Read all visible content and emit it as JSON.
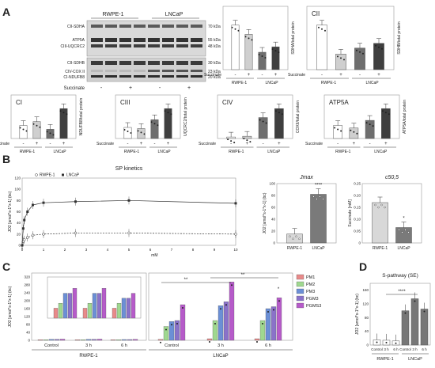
{
  "panel_letters": [
    "A",
    "B",
    "C",
    "D"
  ],
  "blot": {
    "groups": [
      "RWPE-1",
      "LNCaP"
    ],
    "bands_top": [
      {
        "name": "CII-SDHA",
        "kda": "70 kDa"
      },
      {
        "name": "ATP5A",
        "kda": "55 kDa"
      },
      {
        "name": "CIII-UQCRC2",
        "kda": "48 kDa"
      }
    ],
    "bands_bottom": [
      {
        "name": "CII-SDHB",
        "kda": "30 kDa"
      },
      {
        "name": "CIV-COX II",
        "kda": "23 kDa"
      },
      {
        "name": "CI-NDUFB8",
        "kda": "20 kDa"
      }
    ],
    "succinate_label": "Succinate",
    "succinate_marks": [
      "-",
      "+",
      "-",
      "+"
    ]
  },
  "common": {
    "succinate": "Succinate",
    "minus": "-",
    "plus": "+",
    "rwpe": "RWPE-1",
    "lncap": "LNCaP"
  },
  "bars_A": [
    {
      "title": "",
      "ylabel": "SDHA/total protein",
      "values": [
        8.2,
        6.5,
        3.2,
        4.2
      ]
    },
    {
      "title": "CII",
      "ylabel": "SDHB/total protein",
      "values": [
        6.6,
        2.3,
        3.2,
        3.9
      ]
    },
    {
      "title": "CI",
      "ylabel": "NDUFB8/total protein",
      "values": [
        1.7,
        2.2,
        1.2,
        3.9
      ]
    },
    {
      "title": "CIII",
      "ylabel": "UQCRC2/total protein",
      "values": [
        1.0,
        0.9,
        1.7,
        2.7
      ]
    },
    {
      "title": "CIV",
      "ylabel": "COXII/total protein",
      "values": [
        0.2,
        0.3,
        2.8,
        4.0
      ]
    },
    {
      "title": "ATP5A",
      "ylabel": "ATP5A/total protein",
      "values": [
        4.1,
        3.3,
        5.7,
        9.4
      ]
    }
  ],
  "panel_B": {
    "title": "SP kinetics",
    "legend": [
      "RWPE-1",
      "LNCaP"
    ],
    "xlabel": "mM",
    "ylabel": "JO2 [amol*s-1*x-1] (bc)",
    "x_ticks": [
      "0",
      "1",
      "2",
      "3",
      "4",
      "5",
      "6",
      "7",
      "8",
      "9",
      "10"
    ],
    "y_ticks": [
      "0",
      "20",
      "40",
      "60",
      "80",
      "100",
      "120"
    ],
    "chart_data": {
      "type": "line",
      "x": [
        0,
        0.05,
        0.1,
        0.25,
        0.5,
        1,
        2.5,
        5,
        10
      ],
      "series": [
        {
          "name": "RWPE-1",
          "values": [
            0,
            7,
            10,
            14,
            18,
            20,
            22,
            22,
            20
          ]
        },
        {
          "name": "LNCaP",
          "values": [
            0,
            30,
            45,
            60,
            72,
            76,
            78,
            80,
            75
          ]
        }
      ],
      "xlim": [
        0,
        10
      ],
      "ylim": [
        0,
        120
      ]
    },
    "jmax": {
      "title": "Jmax",
      "ylabel": "JO2 [amol*s-1*x-1] (bc)",
      "y_ticks": [
        "0",
        "20",
        "40",
        "60",
        "80",
        "100"
      ],
      "categories": [
        "RWPE-1",
        "LNCaP"
      ],
      "values": [
        15,
        82
      ],
      "sig": "****"
    },
    "c50": {
      "title": "c50,5",
      "ylabel": "Succinate [mM]",
      "y_ticks": [
        "0",
        "0.05",
        "0.10",
        "0.15",
        "0.20",
        "0.25"
      ],
      "categories": [
        "RWPE-1",
        "LNCaP"
      ],
      "values": [
        0.17,
        0.065
      ],
      "sig": "*"
    }
  },
  "panel_C": {
    "ylabel": "JO2 [amol*s-1*x-1] (bc)",
    "y_ticks": [
      "0",
      "20",
      "40",
      "60",
      "80",
      "100",
      "120",
      "140",
      "160",
      "180",
      "200",
      "220",
      "240",
      "260",
      "280",
      "300",
      "320",
      "340"
    ],
    "legend": [
      "PM1",
      "PM2",
      "PM3",
      "PGM3",
      "PGMS3"
    ],
    "colors": [
      "#e88a8a",
      "#9fd88f",
      "#6b8fd6",
      "#8a72c9",
      "#b65bc9"
    ],
    "timepoints": [
      "Control",
      "3 h",
      "6 h"
    ],
    "groups": [
      "RWPE-1",
      "LNCaP"
    ],
    "sig_double": "**",
    "sig_single": "*",
    "chart_data": {
      "type": "bar",
      "categories": [
        "RWPE-1 Control",
        "RWPE-1 3 h",
        "RWPE-1 6 h",
        "LNCaP Control",
        "LNCaP 3 h",
        "LNCaP 6 h"
      ],
      "series": [
        {
          "name": "PM1",
          "values": [
            2,
            2,
            2,
            5,
            8,
            8
          ]
        },
        {
          "name": "PM2",
          "values": [
            3,
            3,
            3,
            70,
            100,
            100
          ]
        },
        {
          "name": "PM3",
          "values": [
            5,
            5,
            4,
            95,
            175,
            160
          ]
        },
        {
          "name": "PGM3",
          "values": [
            5,
            5,
            4,
            100,
            195,
            170
          ]
        },
        {
          "name": "PGMS3",
          "values": [
            6,
            6,
            5,
            180,
            295,
            215
          ]
        }
      ],
      "ylim": [
        0,
        340
      ]
    }
  },
  "panel_D": {
    "title": "S-pathway (SE)",
    "ylabel": "JO2 [amol*s-1*x-1] (bc)",
    "y_ticks": [
      "0",
      "20",
      "40",
      "60",
      "80",
      "100",
      "120",
      "140",
      "160",
      "180"
    ],
    "timepoints": [
      "Control",
      "3 h",
      "6 h"
    ],
    "groups": [
      "RWPE-1",
      "LNCaP"
    ],
    "sig": "****",
    "chart_data": {
      "type": "bar",
      "categories": [
        "RWPE-1 Control",
        "RWPE-1 3 h",
        "RWPE-1 6 h",
        "LNCaP Control",
        "LNCaP 3 h",
        "LNCaP 6 h"
      ],
      "values": [
        15,
        14,
        12,
        100,
        135,
        105
      ],
      "ylim": [
        0,
        180
      ]
    }
  }
}
